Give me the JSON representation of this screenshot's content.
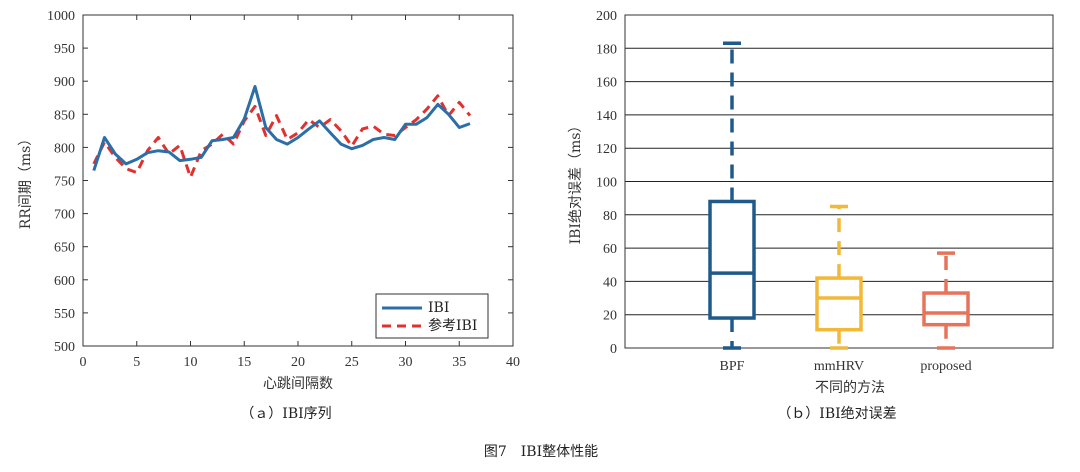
{
  "figure_caption": "图7　IBI整体性能",
  "chart_data": [
    {
      "type": "line",
      "caption": "（ａ）IBI序列",
      "xlabel": "心跳间隔数",
      "ylabel": "RR间期（ms）",
      "xlim": [
        0,
        40
      ],
      "ylim": [
        500,
        1000
      ],
      "xticks": [
        0,
        5,
        10,
        15,
        20,
        25,
        30,
        35,
        40
      ],
      "yticks": [
        500,
        550,
        600,
        650,
        700,
        750,
        800,
        850,
        900,
        950,
        1000
      ],
      "grid": false,
      "legend_position": "bottom-right",
      "series": [
        {
          "name": "IBI",
          "color": "#2b6ea8",
          "style": "solid",
          "x": [
            1,
            2,
            3,
            4,
            5,
            6,
            7,
            8,
            9,
            10,
            11,
            12,
            13,
            14,
            15,
            16,
            17,
            18,
            19,
            20,
            21,
            22,
            23,
            24,
            25,
            26,
            27,
            28,
            29,
            30,
            31,
            32,
            33,
            34,
            35,
            36
          ],
          "y": [
            765,
            815,
            790,
            775,
            782,
            792,
            795,
            793,
            780,
            782,
            785,
            810,
            812,
            815,
            843,
            892,
            830,
            812,
            805,
            815,
            828,
            840,
            822,
            805,
            798,
            803,
            812,
            815,
            812,
            835,
            835,
            845,
            865,
            850,
            830,
            836
          ]
        },
        {
          "name": "参考IBI",
          "color": "#e0312f",
          "style": "dashed",
          "x": [
            1,
            2,
            3,
            4,
            5,
            6,
            7,
            8,
            9,
            10,
            11,
            12,
            13,
            14,
            15,
            16,
            17,
            18,
            19,
            20,
            21,
            22,
            23,
            24,
            25,
            26,
            27,
            28,
            29,
            30,
            31,
            32,
            33,
            34,
            35,
            36
          ],
          "y": [
            775,
            808,
            785,
            768,
            762,
            795,
            815,
            790,
            803,
            755,
            795,
            805,
            820,
            805,
            840,
            862,
            818,
            848,
            812,
            822,
            842,
            830,
            842,
            825,
            802,
            828,
            832,
            820,
            818,
            830,
            842,
            858,
            878,
            848,
            868,
            848
          ]
        }
      ]
    },
    {
      "type": "box",
      "caption": "（ｂ）IBI绝对误差",
      "xlabel": "不同的方法",
      "ylabel": "IBI绝对误差（ms）",
      "ylim": [
        0,
        200
      ],
      "yticks": [
        0,
        20,
        40,
        60,
        80,
        100,
        120,
        140,
        160,
        180,
        200
      ],
      "grid": "horizontal",
      "categories": [
        "BPF",
        "mmHRV",
        "proposed"
      ],
      "colors": [
        "#1f5a8b",
        "#f2b838",
        "#e6735a"
      ],
      "boxes": [
        {
          "min": 0,
          "q1": 18,
          "median": 45,
          "q3": 88,
          "max": 183
        },
        {
          "min": 0,
          "q1": 11,
          "median": 30,
          "q3": 42,
          "max": 85
        },
        {
          "min": 0,
          "q1": 14,
          "median": 21,
          "q3": 33,
          "max": 57
        }
      ]
    }
  ]
}
